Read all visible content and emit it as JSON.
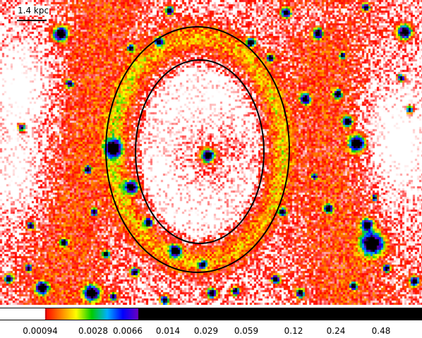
{
  "figure": {
    "scale_bar_label": "1.4 kpc",
    "colorbar": {
      "tick_labels": [
        "0.00094",
        "0.0028",
        "0.0066",
        "0.014",
        "0.029",
        "0.059",
        "0.12",
        "0.24",
        "0.48"
      ],
      "palette": [
        "#ffffff",
        "#ff0000",
        "#ff8000",
        "#ffff00",
        "#00cc00",
        "#00b0ff",
        "#0000ff",
        "#6a00c0",
        "#000000"
      ]
    },
    "ellipses": {
      "count": 2,
      "stroke_color": "#000000"
    }
  }
}
